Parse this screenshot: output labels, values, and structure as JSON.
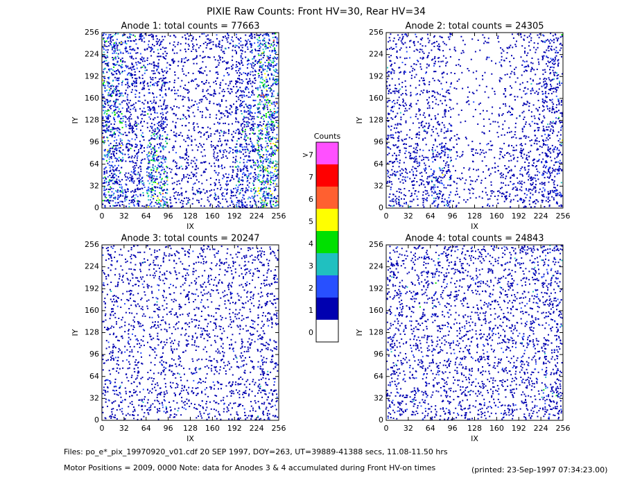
{
  "title": "PIXIE Raw Counts:  Front HV=30, Rear HV=34",
  "chart_data": [
    {
      "type": "heatmap",
      "title": "Anode 1: total counts = 77663",
      "xlabel": "IX",
      "ylabel": "IY",
      "xlim": [
        0,
        256
      ],
      "ylim": [
        0,
        256
      ],
      "xticks": [
        0,
        32,
        64,
        96,
        128,
        160,
        192,
        224,
        256
      ],
      "yticks": [
        0,
        32,
        64,
        96,
        128,
        160,
        192,
        224,
        256
      ],
      "values": [
        [
          1.4,
          1.0,
          2.0,
          0.5,
          0.4,
          0.6,
          1.3,
          2.2
        ],
        [
          1.5,
          0.9,
          2.2,
          0.4,
          0.3,
          0.5,
          1.2,
          2.3
        ],
        [
          1.6,
          0.8,
          1.8,
          0.3,
          0.3,
          0.5,
          1.2,
          2.2
        ],
        [
          1.8,
          0.7,
          1.0,
          0.3,
          0.3,
          0.4,
          1.0,
          2.0
        ],
        [
          1.8,
          0.6,
          0.8,
          0.3,
          0.3,
          0.4,
          1.0,
          2.2
        ],
        [
          1.6,
          0.7,
          0.7,
          0.3,
          0.3,
          0.4,
          0.9,
          2.2
        ],
        [
          1.5,
          0.8,
          0.6,
          0.3,
          0.3,
          0.4,
          0.8,
          2.0
        ],
        [
          1.5,
          0.8,
          0.6,
          0.3,
          0.4,
          0.5,
          0.8,
          1.8
        ]
      ]
    },
    {
      "type": "heatmap",
      "title": "Anode 2: total counts = 24305",
      "xlabel": "IX",
      "ylabel": "IY",
      "xlim": [
        0,
        256
      ],
      "ylim": [
        0,
        256
      ],
      "xticks": [
        0,
        32,
        64,
        96,
        128,
        160,
        192,
        224,
        256
      ],
      "yticks": [
        0,
        32,
        64,
        96,
        128,
        160,
        192,
        224,
        256
      ],
      "values": [
        [
          0.5,
          0.4,
          0.8,
          0.2,
          0.2,
          0.4,
          0.6,
          0.8
        ],
        [
          0.5,
          0.6,
          0.9,
          0.2,
          0.2,
          0.4,
          0.6,
          0.8
        ],
        [
          0.5,
          0.6,
          0.8,
          0.2,
          0.2,
          0.3,
          0.5,
          0.8
        ],
        [
          0.5,
          0.4,
          0.4,
          0.1,
          0.1,
          0.2,
          0.4,
          0.7
        ],
        [
          0.5,
          0.3,
          0.3,
          0.1,
          0.1,
          0.2,
          0.3,
          0.7
        ],
        [
          0.4,
          0.3,
          0.3,
          0.1,
          0.1,
          0.2,
          0.3,
          0.7
        ],
        [
          0.4,
          0.3,
          0.3,
          0.1,
          0.1,
          0.2,
          0.3,
          0.6
        ],
        [
          0.4,
          0.3,
          0.3,
          0.1,
          0.1,
          0.2,
          0.3,
          0.6
        ]
      ]
    },
    {
      "type": "heatmap",
      "title": "Anode 3: total counts = 20247",
      "xlabel": "IX",
      "ylabel": "IY",
      "xlim": [
        0,
        256
      ],
      "ylim": [
        0,
        256
      ],
      "xticks": [
        0,
        32,
        64,
        96,
        128,
        160,
        192,
        224,
        256
      ],
      "yticks": [
        0,
        32,
        64,
        96,
        128,
        160,
        192,
        224,
        256
      ],
      "values": [
        [
          0.4,
          0.4,
          0.4,
          0.3,
          0.3,
          0.3,
          0.4,
          0.5
        ],
        [
          0.4,
          0.3,
          0.4,
          0.3,
          0.3,
          0.3,
          0.4,
          0.5
        ],
        [
          0.3,
          0.3,
          0.3,
          0.3,
          0.3,
          0.3,
          0.3,
          0.5
        ],
        [
          0.3,
          0.3,
          0.3,
          0.3,
          0.3,
          0.3,
          0.3,
          0.4
        ],
        [
          0.3,
          0.3,
          0.3,
          0.3,
          0.3,
          0.3,
          0.3,
          0.4
        ],
        [
          0.3,
          0.3,
          0.3,
          0.3,
          0.3,
          0.3,
          0.3,
          0.4
        ],
        [
          0.3,
          0.3,
          0.3,
          0.3,
          0.3,
          0.3,
          0.3,
          0.4
        ],
        [
          0.3,
          0.3,
          0.3,
          0.3,
          0.3,
          0.3,
          0.3,
          0.4
        ]
      ]
    },
    {
      "type": "heatmap",
      "title": "Anode 4: total counts = 24843",
      "xlabel": "IX",
      "ylabel": "IY",
      "xlim": [
        0,
        256
      ],
      "ylim": [
        0,
        256
      ],
      "xticks": [
        0,
        32,
        64,
        96,
        128,
        160,
        192,
        224,
        256
      ],
      "yticks": [
        0,
        32,
        64,
        96,
        128,
        160,
        192,
        224,
        256
      ],
      "values": [
        [
          0.5,
          0.4,
          0.4,
          0.4,
          0.4,
          0.4,
          0.4,
          0.6
        ],
        [
          0.4,
          0.4,
          0.4,
          0.4,
          0.4,
          0.4,
          0.4,
          0.6
        ],
        [
          0.4,
          0.4,
          0.4,
          0.4,
          0.4,
          0.4,
          0.4,
          0.5
        ],
        [
          0.4,
          0.4,
          0.4,
          0.4,
          0.4,
          0.4,
          0.4,
          0.5
        ],
        [
          0.4,
          0.4,
          0.4,
          0.3,
          0.4,
          0.4,
          0.4,
          0.5
        ],
        [
          0.4,
          0.4,
          0.4,
          0.3,
          0.4,
          0.4,
          0.4,
          0.5
        ],
        [
          0.4,
          0.4,
          0.4,
          0.4,
          0.4,
          0.4,
          0.4,
          0.5
        ],
        [
          0.4,
          0.4,
          0.4,
          0.4,
          0.4,
          0.4,
          0.5,
          0.6
        ]
      ]
    }
  ],
  "colorbar": {
    "title": "Counts",
    "labels": [
      0,
      1,
      2,
      3,
      4,
      5,
      6,
      7,
      ">7"
    ],
    "colors": [
      "#ffffff",
      "#0000b0",
      "#2850ff",
      "#20c0c0",
      "#00e000",
      "#ffff00",
      "#ff6030",
      "#ff0000",
      "#ff50ff"
    ]
  },
  "footer": [
    "Files: po_e*_pix_19970920_v01.cdf    20 SEP 1997, DOY=263, UT=39889-41388 secs, 11.08-11.50 hrs",
    "Motor Positions = 2009, 0000   Note: data for Anodes 3 & 4 accumulated during Front HV-on times",
    "(printed: 23-Sep-1997 07:34:23.00)"
  ]
}
